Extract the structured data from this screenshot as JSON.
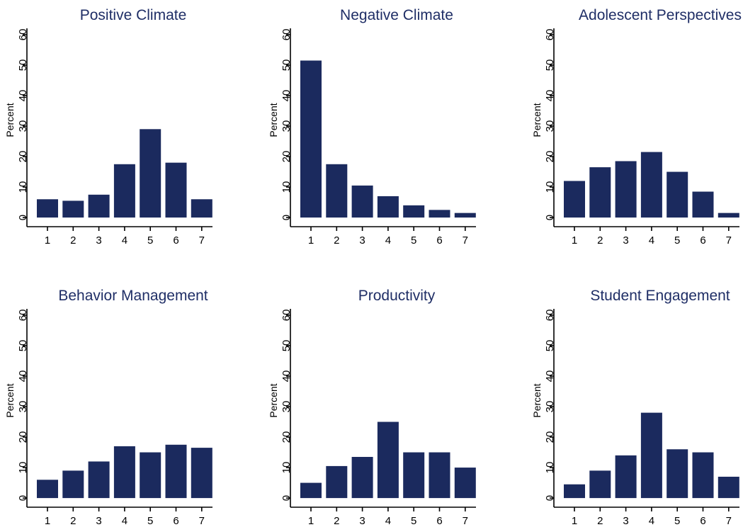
{
  "colors": {
    "bar": "#1b2a5e",
    "title": "#1f2e66",
    "axis": "#000000",
    "background": "#ffffff"
  },
  "chart_data": [
    {
      "type": "bar",
      "title": "Positive Climate",
      "ylabel": "Percent",
      "categories": [
        "1",
        "2",
        "3",
        "4",
        "5",
        "6",
        "7"
      ],
      "values": [
        6,
        5.5,
        7.5,
        17.5,
        29,
        18,
        6
      ],
      "yticks": [
        "0",
        "10",
        "20",
        "30",
        "40",
        "50",
        "60"
      ],
      "ylim": [
        -3,
        63
      ],
      "grid": false
    },
    {
      "type": "bar",
      "title": "Negative Climate",
      "ylabel": "Percent",
      "categories": [
        "1",
        "2",
        "3",
        "4",
        "5",
        "6",
        "7"
      ],
      "values": [
        51.5,
        17.5,
        10.5,
        7,
        4,
        2.5,
        1.5
      ],
      "yticks": [
        "0",
        "10",
        "20",
        "30",
        "40",
        "50",
        "60"
      ],
      "ylim": [
        -3,
        63
      ],
      "grid": false
    },
    {
      "type": "bar",
      "title": "Adolescent Perspectives",
      "ylabel": "Percent",
      "categories": [
        "1",
        "2",
        "3",
        "4",
        "5",
        "6",
        "7"
      ],
      "values": [
        12,
        16.5,
        18.5,
        21.5,
        15,
        8.5,
        1.5
      ],
      "yticks": [
        "0",
        "10",
        "20",
        "30",
        "40",
        "50",
        "60"
      ],
      "ylim": [
        -3,
        63
      ],
      "grid": false
    },
    {
      "type": "bar",
      "title": "Behavior Management",
      "ylabel": "Percent",
      "categories": [
        "1",
        "2",
        "3",
        "4",
        "5",
        "6",
        "7"
      ],
      "values": [
        6,
        9,
        12,
        17,
        15,
        17.5,
        16.5
      ],
      "yticks": [
        "0",
        "10",
        "20",
        "30",
        "40",
        "50",
        "60"
      ],
      "ylim": [
        -3,
        63
      ],
      "grid": false
    },
    {
      "type": "bar",
      "title": "Productivity",
      "ylabel": "Percent",
      "categories": [
        "1",
        "2",
        "3",
        "4",
        "5",
        "6",
        "7"
      ],
      "values": [
        5,
        10.5,
        13.5,
        25,
        15,
        15,
        10
      ],
      "yticks": [
        "0",
        "10",
        "20",
        "30",
        "40",
        "50",
        "60"
      ],
      "ylim": [
        -3,
        63
      ],
      "grid": false
    },
    {
      "type": "bar",
      "title": "Student Engagement",
      "ylabel": "Percent",
      "categories": [
        "1",
        "2",
        "3",
        "4",
        "5",
        "6",
        "7"
      ],
      "values": [
        4.5,
        9,
        14,
        28,
        16,
        15,
        7
      ],
      "yticks": [
        "0",
        "10",
        "20",
        "30",
        "40",
        "50",
        "60"
      ],
      "ylim": [
        -3,
        63
      ],
      "grid": false
    }
  ]
}
